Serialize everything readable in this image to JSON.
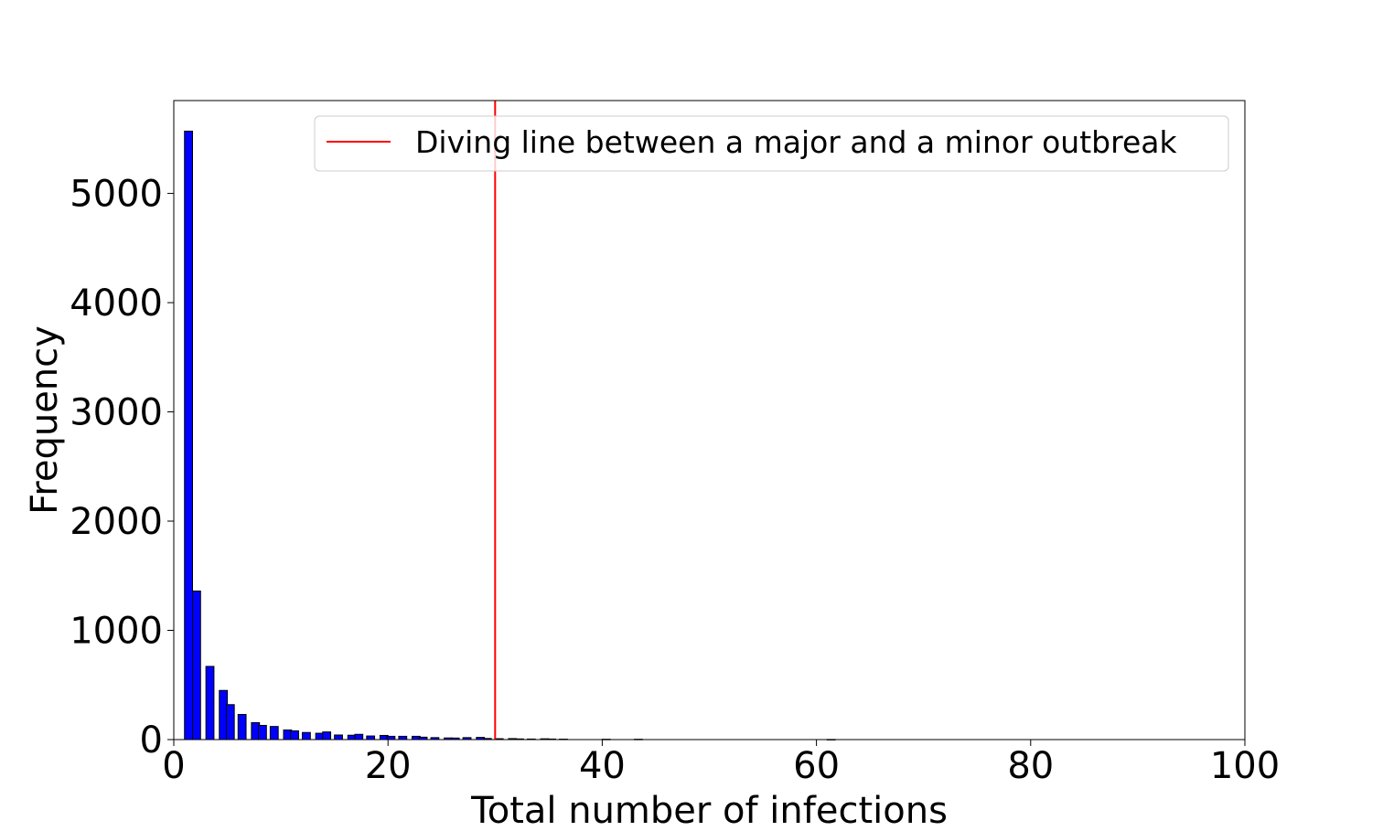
{
  "chart_data": {
    "type": "bar",
    "xlabel": "Total number of infections",
    "ylabel": "Frequency",
    "xlim": [
      0,
      100
    ],
    "ylim": [
      0,
      5850
    ],
    "xticks": [
      0,
      20,
      40,
      60,
      80,
      100
    ],
    "yticks": [
      0,
      1000,
      2000,
      3000,
      4000,
      5000
    ],
    "bin_width": 0.75,
    "bar_color": "#0000ff",
    "edge_color": "#000000",
    "legend": {
      "label": "Diving line between a major and a minor outbreak",
      "placement": "top-right"
    },
    "threshold": {
      "x": 30,
      "color": "#ff0000"
    },
    "bars": [
      {
        "x": 1.0,
        "value": 5570
      },
      {
        "x": 1.75,
        "value": 1360
      },
      {
        "x": 3.0,
        "value": 670
      },
      {
        "x": 4.25,
        "value": 450
      },
      {
        "x": 4.9,
        "value": 320
      },
      {
        "x": 6.0,
        "value": 230
      },
      {
        "x": 7.25,
        "value": 155
      },
      {
        "x": 7.9,
        "value": 130
      },
      {
        "x": 9.0,
        "value": 120
      },
      {
        "x": 10.25,
        "value": 88
      },
      {
        "x": 10.9,
        "value": 80
      },
      {
        "x": 12.0,
        "value": 65
      },
      {
        "x": 13.25,
        "value": 58
      },
      {
        "x": 13.9,
        "value": 70
      },
      {
        "x": 15.0,
        "value": 42
      },
      {
        "x": 16.25,
        "value": 40
      },
      {
        "x": 16.9,
        "value": 48
      },
      {
        "x": 18.0,
        "value": 33
      },
      {
        "x": 19.25,
        "value": 38
      },
      {
        "x": 19.9,
        "value": 30
      },
      {
        "x": 21.0,
        "value": 30
      },
      {
        "x": 22.25,
        "value": 30
      },
      {
        "x": 22.9,
        "value": 22
      },
      {
        "x": 24.0,
        "value": 18
      },
      {
        "x": 25.25,
        "value": 15
      },
      {
        "x": 25.9,
        "value": 14
      },
      {
        "x": 27.0,
        "value": 18
      },
      {
        "x": 28.25,
        "value": 20
      },
      {
        "x": 28.9,
        "value": 10
      },
      {
        "x": 30.0,
        "value": 8
      },
      {
        "x": 31.25,
        "value": 9
      },
      {
        "x": 31.9,
        "value": 6
      },
      {
        "x": 33.0,
        "value": 5
      },
      {
        "x": 34.25,
        "value": 7
      },
      {
        "x": 34.9,
        "value": 5
      },
      {
        "x": 36.0,
        "value": 4
      },
      {
        "x": 40.0,
        "value": 3
      },
      {
        "x": 43.0,
        "value": 3
      },
      {
        "x": 61.0,
        "value": 1
      }
    ]
  }
}
